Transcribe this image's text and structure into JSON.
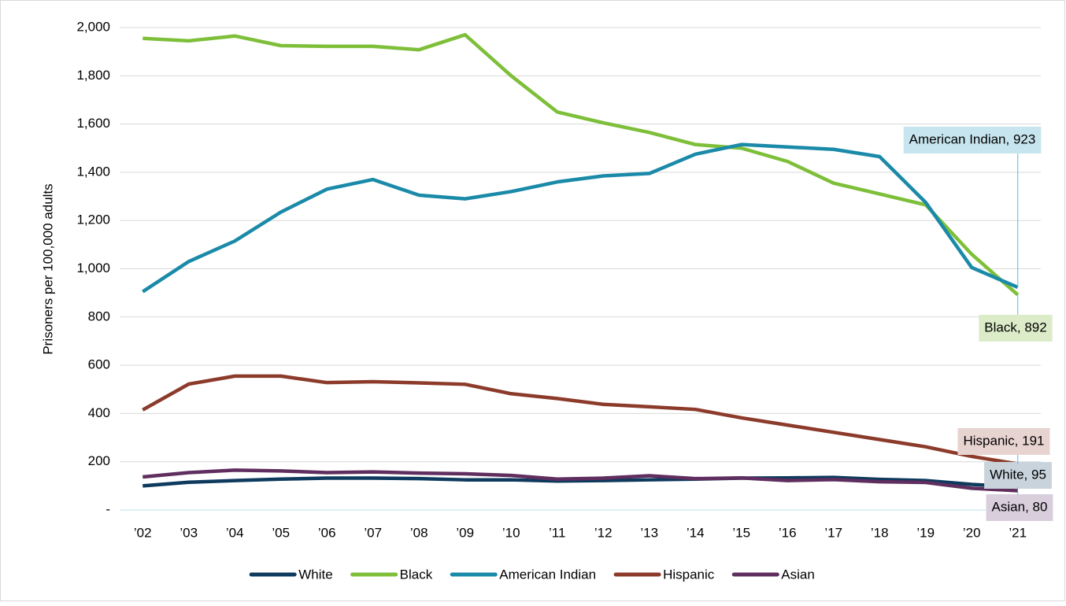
{
  "chart_data": {
    "type": "line",
    "y_label": "Prisoners per 100,000 adults",
    "categories": [
      "’02",
      "’03",
      "’04",
      "’05",
      "’06",
      "’07",
      "’08",
      "’09",
      "’10",
      "’11",
      "’12",
      "’13",
      "’14",
      "’15",
      "’16",
      "’17",
      "’18",
      "’19",
      "’20",
      "’21"
    ],
    "ylim": [
      0,
      2000
    ],
    "yticks": [
      {
        "value": 0,
        "label": "-"
      },
      200,
      400,
      600,
      800,
      {
        "value": 1000,
        "label": "1,000"
      },
      {
        "value": 1200,
        "label": "1,200"
      },
      {
        "value": 1400,
        "label": "1,400"
      },
      {
        "value": 1600,
        "label": "1,600"
      },
      {
        "value": 1800,
        "label": "1,800"
      },
      {
        "value": 2000,
        "label": "2,000"
      }
    ],
    "grid": true,
    "legend": "bottom",
    "series": [
      {
        "name": "White",
        "color": "#0e3a5e",
        "values": [
          100,
          115,
          122,
          128,
          132,
          132,
          130,
          125,
          125,
          120,
          122,
          125,
          128,
          132,
          133,
          135,
          127,
          122,
          106,
          95
        ],
        "value_labels": [
          null,
          null,
          null,
          null,
          null,
          null,
          null,
          null,
          null,
          null,
          null,
          null,
          null,
          null,
          null,
          null,
          null,
          null,
          null,
          "White, 95"
        ]
      },
      {
        "name": "Black",
        "color": "#7ebf3a",
        "values": [
          1955,
          1945,
          1965,
          1925,
          1922,
          1922,
          1908,
          1970,
          1800,
          1650,
          1605,
          1565,
          1515,
          1500,
          1445,
          1355,
          1310,
          1265,
          1060,
          892
        ],
        "value_labels": [
          null,
          null,
          null,
          null,
          null,
          null,
          null,
          null,
          null,
          null,
          null,
          null,
          null,
          null,
          null,
          null,
          null,
          null,
          null,
          "Black, 892"
        ]
      },
      {
        "name": "American Indian",
        "color": "#1a8aa8",
        "values": [
          905,
          1030,
          1115,
          1235,
          1330,
          1370,
          1305,
          1290,
          1320,
          1360,
          1385,
          1395,
          1475,
          1515,
          1505,
          1495,
          1465,
          1275,
          1005,
          923
        ],
        "value_labels": [
          null,
          null,
          null,
          null,
          null,
          null,
          null,
          null,
          null,
          null,
          null,
          null,
          null,
          null,
          null,
          null,
          null,
          null,
          null,
          "American Indian, 923"
        ]
      },
      {
        "name": "Hispanic",
        "color": "#8c3b2b",
        "values": [
          415,
          522,
          555,
          555,
          528,
          532,
          527,
          521,
          482,
          462,
          438,
          428,
          417,
          382,
          352,
          322,
          292,
          262,
          222,
          191
        ],
        "value_labels": [
          null,
          null,
          null,
          null,
          null,
          null,
          null,
          null,
          null,
          null,
          null,
          null,
          null,
          null,
          null,
          null,
          null,
          null,
          null,
          "Hispanic, 191"
        ]
      },
      {
        "name": "Asian",
        "color": "#5f2e5f",
        "values": [
          137,
          155,
          165,
          162,
          155,
          158,
          153,
          150,
          143,
          128,
          132,
          142,
          130,
          133,
          122,
          126,
          117,
          114,
          90,
          80
        ],
        "value_labels": [
          null,
          null,
          null,
          null,
          null,
          null,
          null,
          null,
          null,
          null,
          null,
          null,
          null,
          null,
          null,
          null,
          null,
          null,
          null,
          "Asian, 80"
        ]
      }
    ]
  }
}
